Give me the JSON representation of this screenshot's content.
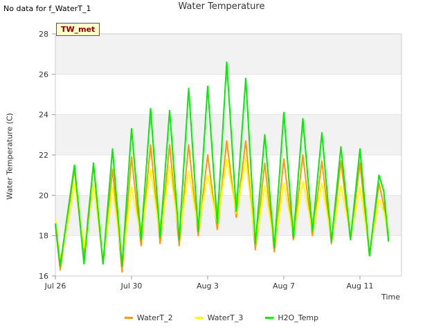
{
  "nodata_text": "No data for f_WaterT_1",
  "tag_label": "TW_met",
  "chart_data": {
    "type": "line",
    "title": "Water Temperature",
    "xlabel": "Time",
    "ylabel": "Water Temperature (C)",
    "x_ticks": [
      "Jul 26",
      "Jul 30",
      "Aug 3",
      "Aug 7",
      "Aug 11"
    ],
    "y_ticks": [
      16,
      18,
      20,
      22,
      24,
      26,
      28
    ],
    "ylim": [
      16,
      28
    ],
    "grid": "horizontal bands",
    "legend_position": "bottom",
    "series": [
      {
        "name": "WaterT_2",
        "color": "#ff9900",
        "x": [
          "Jul 26",
          "Jul 26 06:00",
          "Jul 27",
          "Jul 27 12:00",
          "Jul 28",
          "Jul 28 12:00",
          "Jul 29",
          "Jul 29 12:00",
          "Jul 30",
          "Jul 30 12:00",
          "Jul 31",
          "Jul 31 12:00",
          "Aug 1",
          "Aug 1 12:00",
          "Aug 2",
          "Aug 2 12:00",
          "Aug 3",
          "Aug 3 12:00",
          "Aug 4",
          "Aug 4 12:00",
          "Aug 5",
          "Aug 5 12:00",
          "Aug 6",
          "Aug 6 12:00",
          "Aug 7",
          "Aug 7 12:00",
          "Aug 8",
          "Aug 8 12:00",
          "Aug 9",
          "Aug 9 12:00",
          "Aug 10",
          "Aug 10 12:00",
          "Aug 11",
          "Aug 11 12:00",
          "Aug 12",
          "Aug 12 06:00",
          "Aug 12 12:00"
        ],
        "y": [
          18.5,
          16.3,
          21.3,
          17.0,
          21.5,
          16.6,
          21.3,
          16.2,
          21.9,
          17.5,
          22.5,
          17.6,
          22.5,
          17.5,
          22.5,
          18.0,
          22.0,
          18.3,
          22.7,
          18.9,
          22.7,
          17.3,
          21.6,
          17.2,
          21.8,
          17.8,
          22.0,
          18.0,
          21.7,
          17.6,
          21.7,
          17.8,
          21.6,
          17.0,
          20.6,
          19.5,
          17.8
        ]
      },
      {
        "name": "WaterT_3",
        "color": "#ffff00",
        "x": [
          "Jul 26",
          "Jul 26 06:00",
          "Jul 27",
          "Jul 27 12:00",
          "Jul 28",
          "Jul 28 12:00",
          "Jul 29",
          "Jul 29 12:00",
          "Jul 30",
          "Jul 30 12:00",
          "Jul 31",
          "Jul 31 12:00",
          "Aug 1",
          "Aug 1 12:00",
          "Aug 2",
          "Aug 2 12:00",
          "Aug 3",
          "Aug 3 12:00",
          "Aug 4",
          "Aug 4 12:00",
          "Aug 5",
          "Aug 5 12:00",
          "Aug 6",
          "Aug 6 12:00",
          "Aug 7",
          "Aug 7 12:00",
          "Aug 8",
          "Aug 8 12:00",
          "Aug 9",
          "Aug 9 12:00",
          "Aug 10",
          "Aug 10 12:00",
          "Aug 11",
          "Aug 11 12:00",
          "Aug 12",
          "Aug 12 06:00",
          "Aug 12 12:00"
        ],
        "y": [
          18.8,
          16.6,
          20.6,
          17.4,
          20.5,
          16.8,
          20.4,
          16.7,
          20.4,
          17.9,
          21.3,
          17.9,
          21.4,
          18.0,
          21.2,
          18.3,
          21.0,
          18.6,
          21.8,
          19.1,
          21.8,
          17.6,
          20.5,
          17.5,
          20.6,
          18.0,
          20.7,
          18.2,
          20.6,
          17.8,
          20.5,
          18.0,
          20.4,
          17.2,
          19.8,
          19.2,
          17.9
        ]
      },
      {
        "name": "H2O_Temp",
        "color": "#00ee00",
        "x": [
          "Jul 26",
          "Jul 26 06:00",
          "Jul 27",
          "Jul 27 12:00",
          "Jul 28",
          "Jul 28 12:00",
          "Jul 29",
          "Jul 29 12:00",
          "Jul 30",
          "Jul 30 12:00",
          "Jul 31",
          "Jul 31 12:00",
          "Aug 1",
          "Aug 1 12:00",
          "Aug 2",
          "Aug 2 12:00",
          "Aug 3",
          "Aug 3 12:00",
          "Aug 4",
          "Aug 4 12:00",
          "Aug 5",
          "Aug 5 12:00",
          "Aug 6",
          "Aug 6 12:00",
          "Aug 7",
          "Aug 7 12:00",
          "Aug 8",
          "Aug 8 12:00",
          "Aug 9",
          "Aug 9 12:00",
          "Aug 10",
          "Aug 10 12:00",
          "Aug 11",
          "Aug 11 12:00",
          "Aug 12",
          "Aug 12 06:00",
          "Aug 12 12:00"
        ],
        "y": [
          18.6,
          16.5,
          21.5,
          16.6,
          21.6,
          16.6,
          22.3,
          16.5,
          23.3,
          17.8,
          24.3,
          17.9,
          24.2,
          17.8,
          25.3,
          18.2,
          25.4,
          18.6,
          26.6,
          19.2,
          25.8,
          17.6,
          23.0,
          17.4,
          24.1,
          17.9,
          23.8,
          18.2,
          23.1,
          17.7,
          22.4,
          17.8,
          22.3,
          17.0,
          21.0,
          20.2,
          17.7
        ]
      }
    ]
  }
}
